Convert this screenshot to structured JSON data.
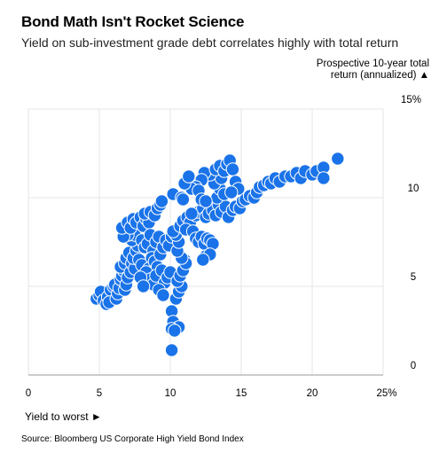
{
  "title": "Bond Math Isn't Rocket Science",
  "subtitle": "Yield on sub-investment grade debt correlates highly with total return",
  "source": "Source: Bloomberg US Corporate High Yield Bond Index",
  "chart_data": {
    "type": "scatter",
    "title": "Bond Math Isn't Rocket Science",
    "subtitle": "Yield on sub-investment grade debt correlates highly with total return",
    "xlabel": "Yield to worst ►",
    "ylabel": "Prospective 10-year total return (annualized) ▲",
    "xlim": [
      0,
      25
    ],
    "ylim": [
      0,
      15
    ],
    "x_ticks": [
      "0",
      "5",
      "10",
      "15",
      "20",
      "25%"
    ],
    "y_ticks": [
      "0",
      "5",
      "10",
      "15%"
    ],
    "grid": true,
    "y_axis_side": "right",
    "color": "#1a73e8",
    "points": [
      [
        4.8,
        4.3
      ],
      [
        5.0,
        4.5
      ],
      [
        5.1,
        4.7
      ],
      [
        5.3,
        4.2
      ],
      [
        5.5,
        4.0
      ],
      [
        5.6,
        4.4
      ],
      [
        5.8,
        4.8
      ],
      [
        6.0,
        5.0
      ],
      [
        5.7,
        4.1
      ],
      [
        6.2,
        4.3
      ],
      [
        6.3,
        4.6
      ],
      [
        6.1,
        5.1
      ],
      [
        6.4,
        4.9
      ],
      [
        6.5,
        5.4
      ],
      [
        6.6,
        5.6
      ],
      [
        6.8,
        4.8
      ],
      [
        6.9,
        5.1
      ],
      [
        6.7,
        5.9
      ],
      [
        6.5,
        6.1
      ],
      [
        6.8,
        6.3
      ],
      [
        7.0,
        5.5
      ],
      [
        7.2,
        5.8
      ],
      [
        6.9,
        6.6
      ],
      [
        7.1,
        6.9
      ],
      [
        7.3,
        6.3
      ],
      [
        7.5,
        6.0
      ],
      [
        7.4,
        6.6
      ],
      [
        7.6,
        7.0
      ],
      [
        7.8,
        6.5
      ],
      [
        8.0,
        6.2
      ],
      [
        7.7,
        7.3
      ],
      [
        7.3,
        7.6
      ],
      [
        7.5,
        7.9
      ],
      [
        7.0,
        7.9
      ],
      [
        6.7,
        7.8
      ],
      [
        6.6,
        8.3
      ],
      [
        7.0,
        8.6
      ],
      [
        7.2,
        8.3
      ],
      [
        7.4,
        8.8
      ],
      [
        7.6,
        8.6
      ],
      [
        7.9,
        8.9
      ],
      [
        8.1,
        8.4
      ],
      [
        8.3,
        8.8
      ],
      [
        8.5,
        8.6
      ],
      [
        8.2,
        9.1
      ],
      [
        8.6,
        9.2
      ],
      [
        8.9,
        9.0
      ],
      [
        9.1,
        9.4
      ],
      [
        9.3,
        9.6
      ],
      [
        9.4,
        9.8
      ],
      [
        8.0,
        7.6
      ],
      [
        8.2,
        7.2
      ],
      [
        8.4,
        7.4
      ],
      [
        8.6,
        7.9
      ],
      [
        8.8,
        7.0
      ],
      [
        9.0,
        7.5
      ],
      [
        9.2,
        7.8
      ],
      [
        8.7,
        6.6
      ],
      [
        8.5,
        6.0
      ],
      [
        8.9,
        6.4
      ],
      [
        9.1,
        6.1
      ],
      [
        9.3,
        6.8
      ],
      [
        9.5,
        7.2
      ],
      [
        9.7,
        7.6
      ],
      [
        9.9,
        7.3
      ],
      [
        10.1,
        7.8
      ],
      [
        8.3,
        5.8
      ],
      [
        8.6,
        5.4
      ],
      [
        8.8,
        5.1
      ],
      [
        9.0,
        5.6
      ],
      [
        9.4,
        5.9
      ],
      [
        9.6,
        5.2
      ],
      [
        9.8,
        5.5
      ],
      [
        10.0,
        5.8
      ],
      [
        7.9,
        5.5
      ],
      [
        8.1,
        5.0
      ],
      [
        9.2,
        4.8
      ],
      [
        9.5,
        4.5
      ],
      [
        10.1,
        3.6
      ],
      [
        10.2,
        3.0
      ],
      [
        10.6,
        2.7
      ],
      [
        10.1,
        2.6
      ],
      [
        10.3,
        2.5
      ],
      [
        10.1,
        1.4
      ],
      [
        10.4,
        4.3
      ],
      [
        10.6,
        4.7
      ],
      [
        10.8,
        5.0
      ],
      [
        10.5,
        5.3
      ],
      [
        10.7,
        5.6
      ],
      [
        10.9,
        5.9
      ],
      [
        11.0,
        6.5
      ],
      [
        11.1,
        6.3
      ],
      [
        10.8,
        6.6
      ],
      [
        10.5,
        7.0
      ],
      [
        10.6,
        7.5
      ],
      [
        10.4,
        7.9
      ],
      [
        10.2,
        8.1
      ],
      [
        10.7,
        8.4
      ],
      [
        10.9,
        8.7
      ],
      [
        11.2,
        8.9
      ],
      [
        11.4,
        8.6
      ],
      [
        11.1,
        8.2
      ],
      [
        11.6,
        8.1
      ],
      [
        11.8,
        7.7
      ],
      [
        12.0,
        7.5
      ],
      [
        12.2,
        7.8
      ],
      [
        12.4,
        7.4
      ],
      [
        12.6,
        7.7
      ],
      [
        12.8,
        7.6
      ],
      [
        13.0,
        7.4
      ],
      [
        12.5,
        6.7
      ],
      [
        12.8,
        6.8
      ],
      [
        12.3,
        6.5
      ],
      [
        11.8,
        9.0
      ],
      [
        12.0,
        9.2
      ],
      [
        12.3,
        9.4
      ],
      [
        12.5,
        8.9
      ],
      [
        12.7,
        9.1
      ],
      [
        13.0,
        9.3
      ],
      [
        13.2,
        9.0
      ],
      [
        13.4,
        9.6
      ],
      [
        13.6,
        9.2
      ],
      [
        13.9,
        9.5
      ],
      [
        14.1,
        8.9
      ],
      [
        14.4,
        9.3
      ],
      [
        14.6,
        9.5
      ],
      [
        14.9,
        9.4
      ],
      [
        15.1,
        9.8
      ],
      [
        15.3,
        9.9
      ],
      [
        15.6,
        10.1
      ],
      [
        15.9,
        10.0
      ],
      [
        16.1,
        10.3
      ],
      [
        16.3,
        10.6
      ],
      [
        16.6,
        10.7
      ],
      [
        16.9,
        10.9
      ],
      [
        17.1,
        10.8
      ],
      [
        17.4,
        11.1
      ],
      [
        17.7,
        10.9
      ],
      [
        18.1,
        11.2
      ],
      [
        18.5,
        11.2
      ],
      [
        18.9,
        11.4
      ],
      [
        19.2,
        11.1
      ],
      [
        19.5,
        11.5
      ],
      [
        20.0,
        11.3
      ],
      [
        20.3,
        11.5
      ],
      [
        20.8,
        11.7
      ],
      [
        21.8,
        12.2
      ],
      [
        20.8,
        11.1
      ],
      [
        13.3,
        10.0
      ],
      [
        13.5,
        10.5
      ],
      [
        13.8,
        10.2
      ],
      [
        13.1,
        10.8
      ],
      [
        13.6,
        11.1
      ],
      [
        12.8,
        11.3
      ],
      [
        12.4,
        11.4
      ],
      [
        12.2,
        11.0
      ],
      [
        11.8,
        10.6
      ],
      [
        11.5,
        10.5
      ],
      [
        12.0,
        10.4
      ],
      [
        13.2,
        11.6
      ],
      [
        13.5,
        11.8
      ],
      [
        13.8,
        11.5
      ],
      [
        14.0,
        11.9
      ],
      [
        14.2,
        12.1
      ],
      [
        14.4,
        11.6
      ],
      [
        14.6,
        10.9
      ],
      [
        14.8,
        10.5
      ],
      [
        14.3,
        10.3
      ],
      [
        10.2,
        10.2
      ],
      [
        10.8,
        10.0
      ],
      [
        11.0,
        10.8
      ],
      [
        11.3,
        11.2
      ],
      [
        12.2,
        9.9
      ],
      [
        12.5,
        9.8
      ],
      [
        10.9,
        9.9
      ],
      [
        11.5,
        9.1
      ]
    ]
  }
}
